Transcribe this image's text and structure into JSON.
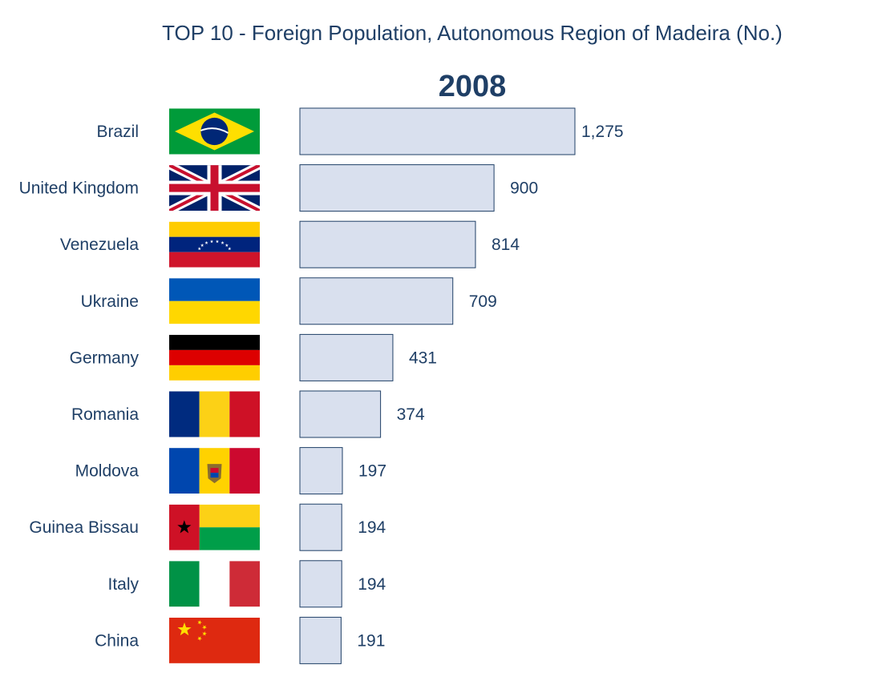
{
  "chart_data": {
    "type": "bar",
    "orientation": "horizontal",
    "title": "TOP 10 - Foreign Population, Autonomous Region of Madeira (No.)",
    "subtitle": "2008",
    "categories": [
      "Brazil",
      "United Kingdom",
      "Venezuela",
      "Ukraine",
      "Germany",
      "Romania",
      "Moldova",
      "Guinea Bissau",
      "Italy",
      "China"
    ],
    "values": [
      1275,
      900,
      814,
      709,
      431,
      374,
      197,
      194,
      194,
      191
    ],
    "value_labels": [
      "1,275",
      "900",
      "814",
      "709",
      "431",
      "374",
      "197",
      "194",
      "194",
      "191"
    ],
    "flag_icons": [
      "brazil-flag-icon",
      "united-kingdom-flag-icon",
      "venezuela-flag-icon",
      "ukraine-flag-icon",
      "germany-flag-icon",
      "romania-flag-icon",
      "moldova-flag-icon",
      "guinea-bissau-flag-icon",
      "italy-flag-icon",
      "china-flag-icon"
    ],
    "xlim": [
      0,
      1275
    ],
    "grid": false,
    "legend": "none",
    "colors": {
      "bar_fill": "#d9e0ee",
      "bar_stroke": "#1f3f66",
      "text": "#1f3f66"
    }
  }
}
